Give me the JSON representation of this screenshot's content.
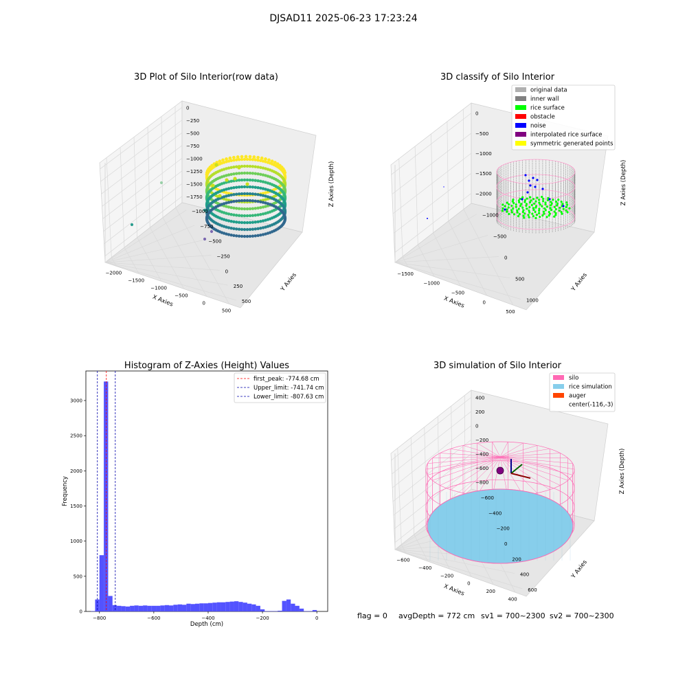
{
  "figure": {
    "suptitle": "DJSAD11 2025-06-23 17:23:24",
    "footer": {
      "flag": "flag = 0",
      "avg_depth": "avgDepth = 772 cm",
      "sv1": "sv1 = 700~2300",
      "sv2": "sv2 = 700~2300"
    }
  },
  "colors": {
    "grid": "#d9d9d9",
    "pane": "#f2f2f2",
    "histogram_bar": "#4a4aff",
    "first_peak_line": "#ff0000",
    "limit_lines": "#0000aa",
    "silo_wireframe": "#ff69b4",
    "rice_simulation": "#87ceeb",
    "auger": "#ff4500",
    "noise": "#0000ff",
    "rice_surface": "#00ff00",
    "inner_wall": "#808080"
  },
  "chart_data": [
    {
      "id": "raw",
      "type": "scatter",
      "projection": "3d",
      "title": "3D Plot of Silo Interior(row data)",
      "xlabel": "X Axies",
      "ylabel": "Y Axies",
      "zlabel": "Z Axies (Depth)",
      "xticks": [
        "−2000",
        "−1500",
        "−1000",
        "−500",
        "0",
        "500"
      ],
      "yticks": [
        "−1000",
        "−750",
        "−500",
        "−250",
        "0",
        "250",
        "500"
      ],
      "zticks": [
        "0",
        "−250",
        "−500",
        "−750",
        "−1000",
        "−1250",
        "−1500",
        "−1750"
      ],
      "colormap": "viridis",
      "outliers": [
        {
          "x": -2000,
          "y": -300,
          "z": -1250
        },
        {
          "x": -1900,
          "y": 300,
          "z": -700
        },
        {
          "x": -250,
          "y": -300,
          "z": -1400
        },
        {
          "x": -150,
          "y": -450,
          "z": -1700
        }
      ]
    },
    {
      "id": "classify",
      "type": "scatter",
      "projection": "3d",
      "title": "3D classify of Silo Interior",
      "xlabel": "X Axies",
      "ylabel": "Y Axies",
      "zlabel": "Z Axies (Depth)",
      "xticks": [
        "−1500",
        "−1000",
        "−500",
        "0",
        "500"
      ],
      "yticks": [
        "−1000",
        "−500",
        "0",
        "500",
        "1000"
      ],
      "zticks": [
        "0",
        "−500",
        "−1000",
        "−1500",
        "−2000"
      ],
      "legend": [
        {
          "label": "original data",
          "color": "#b0b0b0"
        },
        {
          "label": "inner wall",
          "color": "#808080"
        },
        {
          "label": "rice surface",
          "color": "#00ff00"
        },
        {
          "label": "obstacle",
          "color": "#ff0000"
        },
        {
          "label": "noise",
          "color": "#0000ff"
        },
        {
          "label": "interpolated rice surface",
          "color": "#800080"
        },
        {
          "label": "symmetric generated points",
          "color": "#ffff00"
        }
      ],
      "legend_loc": "upper right"
    },
    {
      "id": "hist",
      "type": "bar",
      "title": "Histogram of Z-Axies (Height) Values",
      "xlabel": "Depth (cm)",
      "ylabel": "Frequency",
      "xlim": [
        -850,
        40
      ],
      "ylim": [
        0,
        3420
      ],
      "xticks": [
        -800,
        -600,
        -400,
        -200,
        0
      ],
      "yticks": [
        0,
        500,
        1000,
        1500,
        2000,
        2500,
        3000
      ],
      "bin_width": 16,
      "bins": [
        [
          -832,
          5
        ],
        [
          -816,
          170
        ],
        [
          -800,
          800
        ],
        [
          -784,
          3270
        ],
        [
          -768,
          220
        ],
        [
          -752,
          90
        ],
        [
          -736,
          80
        ],
        [
          -720,
          75
        ],
        [
          -704,
          70
        ],
        [
          -688,
          80
        ],
        [
          -672,
          85
        ],
        [
          -656,
          80
        ],
        [
          -640,
          85
        ],
        [
          -624,
          80
        ],
        [
          -608,
          80
        ],
        [
          -592,
          80
        ],
        [
          -576,
          85
        ],
        [
          -560,
          90
        ],
        [
          -544,
          85
        ],
        [
          -528,
          95
        ],
        [
          -512,
          100
        ],
        [
          -496,
          95
        ],
        [
          -480,
          110
        ],
        [
          -464,
          105
        ],
        [
          -448,
          110
        ],
        [
          -432,
          115
        ],
        [
          -416,
          115
        ],
        [
          -400,
          120
        ],
        [
          -384,
          125
        ],
        [
          -368,
          130
        ],
        [
          -352,
          130
        ],
        [
          -336,
          135
        ],
        [
          -320,
          140
        ],
        [
          -304,
          145
        ],
        [
          -288,
          135
        ],
        [
          -272,
          125
        ],
        [
          -256,
          110
        ],
        [
          -240,
          100
        ],
        [
          -224,
          80
        ],
        [
          -208,
          30
        ],
        [
          -192,
          5
        ],
        [
          -176,
          5
        ],
        [
          -160,
          5
        ],
        [
          -144,
          10
        ],
        [
          -128,
          150
        ],
        [
          -112,
          170
        ],
        [
          -96,
          110
        ],
        [
          -80,
          80
        ],
        [
          -64,
          40
        ],
        [
          -48,
          5
        ],
        [
          -32,
          5
        ],
        [
          -16,
          20
        ]
      ],
      "lines": [
        {
          "x": -774.68,
          "label": "first_peak: -774.68 cm",
          "color": "#ff0000"
        },
        {
          "x": -741.74,
          "label": "Upper_limit: -741.74 cm",
          "color": "#0000aa"
        },
        {
          "x": -807.63,
          "label": "Lower_limit: -807.63 cm",
          "color": "#0000aa"
        }
      ],
      "legend_loc": "upper right"
    },
    {
      "id": "sim",
      "type": "scatter",
      "projection": "3d",
      "title": "3D simulation of Silo Interior",
      "xlabel": "X Axies",
      "ylabel": "Y Axies",
      "zlabel": "Z Axies (Depth)",
      "xticks": [
        "−600",
        "−400",
        "−200",
        "0",
        "200",
        "400"
      ],
      "yticks": [
        "−600",
        "−400",
        "−200",
        "0",
        "200",
        "400",
        "600"
      ],
      "zticks": [
        "400",
        "200",
        "0",
        "−200",
        "−400",
        "−600",
        "−800"
      ],
      "legend": [
        {
          "label": "silo",
          "color": "#ff69b4"
        },
        {
          "label": "rice simulation",
          "color": "#87ceeb"
        },
        {
          "label": "auger",
          "color": "#ff4500"
        },
        {
          "label": "center(-116,-3)",
          "color": ""
        }
      ],
      "legend_loc": "upper right"
    }
  ]
}
